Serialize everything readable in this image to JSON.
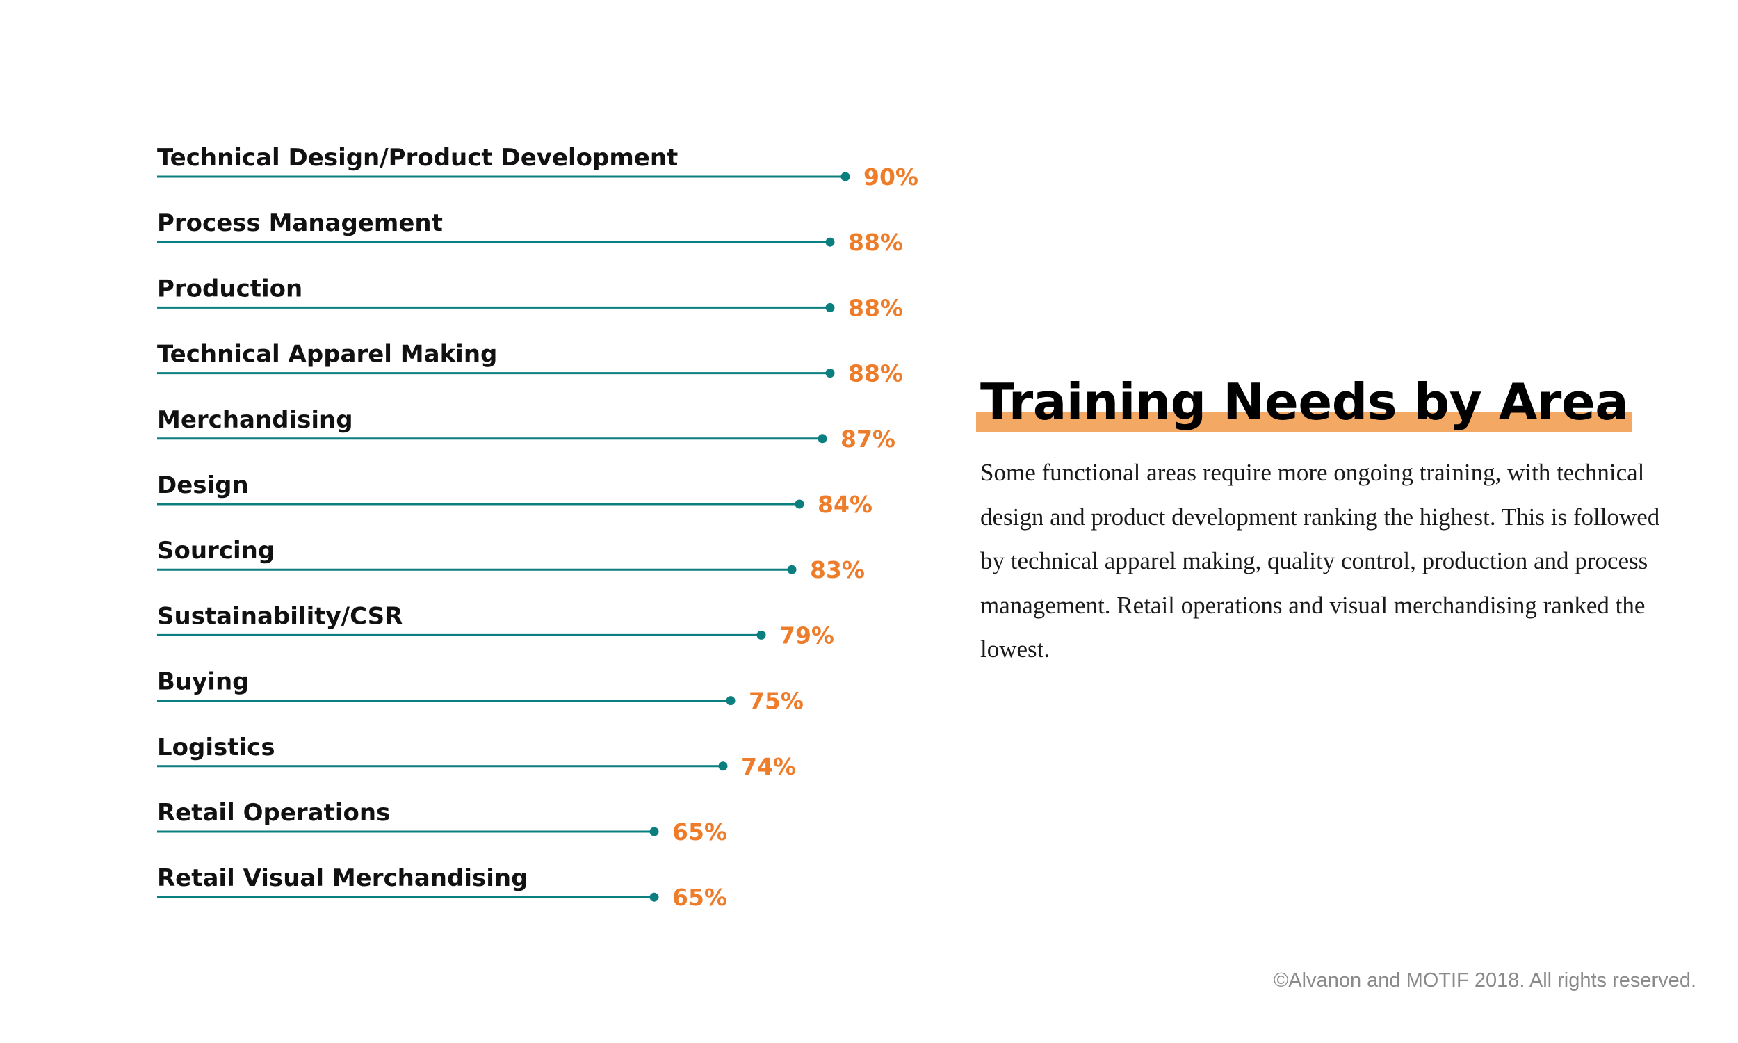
{
  "chart_data": {
    "type": "bar",
    "categories": [
      "Technical Design/Product Development",
      "Process Management",
      "Production",
      "Technical Apparel Making",
      "Merchandising",
      "Design",
      "Sourcing",
      "Sustainability/CSR",
      "Buying",
      "Logistics",
      "Retail Operations",
      "Retail Visual Merchandising"
    ],
    "values": [
      90,
      88,
      88,
      88,
      87,
      84,
      83,
      79,
      75,
      74,
      65,
      65
    ],
    "value_labels": [
      "90%",
      "88%",
      "88%",
      "88%",
      "87%",
      "84%",
      "83%",
      "79%",
      "75%",
      "74%",
      "65%",
      "65%"
    ],
    "unit": "%",
    "orientation": "horizontal",
    "style": "lollipop",
    "xlim": [
      0,
      100
    ],
    "grid": false,
    "legend": "none",
    "colors": {
      "line": "#0b7f7f",
      "value_label": "#ee7d2b",
      "category_label": "#111111"
    }
  },
  "panel": {
    "title": "Training Needs by Area",
    "description": "Some functional areas require more ongoing training, with technical design and product development ranking the highest. This is followed by technical apparel making, quality control, production and process management.  Retail operations and visual merchandising ranked the lowest.",
    "highlight_color": "#f3a864"
  },
  "footer": {
    "copyright": "©Alvanon and MOTIF 2018. All rights reserved."
  }
}
